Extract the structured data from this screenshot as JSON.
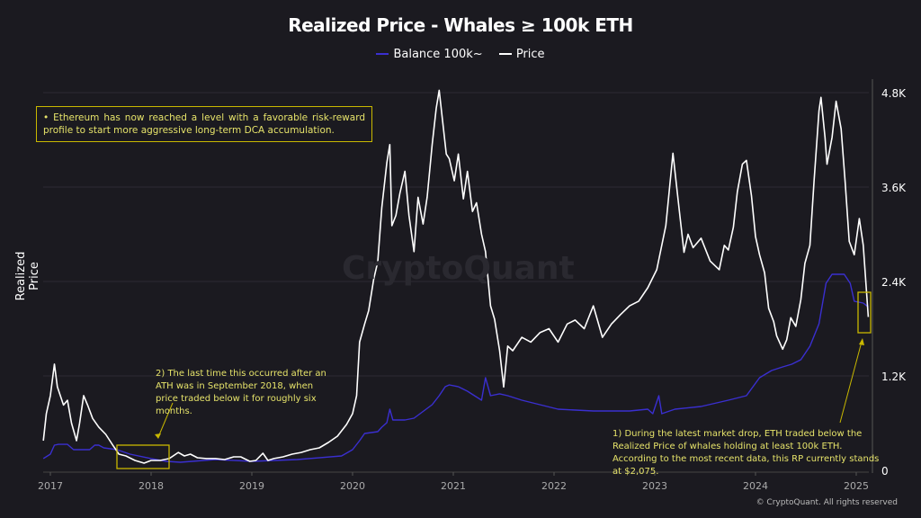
{
  "chart_data": {
    "type": "line",
    "title": "Realized Price - Whales ≥ 100k ETH",
    "ylabel": "Realized Price",
    "y_axis_side": "right",
    "ylim": [
      0,
      5150
    ],
    "xlim": [
      2016.93,
      2025.15
    ],
    "x_ticks": [
      "2017",
      "2018",
      "2019",
      "2020",
      "2021",
      "2022",
      "2023",
      "2024",
      "2025"
    ],
    "y_ticks": [
      {
        "value": 0,
        "label": "0"
      },
      {
        "value": 1200,
        "label": "1.2K"
      },
      {
        "value": 2400,
        "label": "2.4K"
      },
      {
        "value": 3600,
        "label": "3.6K"
      },
      {
        "value": 4800,
        "label": "4.8K"
      }
    ],
    "grid": "horizontal",
    "legend_placement": "top-center",
    "series": [
      {
        "name": "Balance 100k~",
        "color": "#3a2fd0",
        "points": [
          [
            2016.93,
            150
          ],
          [
            2017.0,
            206
          ],
          [
            2017.04,
            320
          ],
          [
            2017.08,
            330
          ],
          [
            2017.17,
            330
          ],
          [
            2017.23,
            263
          ],
          [
            2017.39,
            263
          ],
          [
            2017.44,
            320
          ],
          [
            2017.48,
            320
          ],
          [
            2017.53,
            286
          ],
          [
            2017.66,
            263
          ],
          [
            2017.79,
            206
          ],
          [
            2018.0,
            150
          ],
          [
            2018.15,
            114
          ],
          [
            2018.29,
            103
          ],
          [
            2018.64,
            137
          ],
          [
            2019.0,
            114
          ],
          [
            2019.45,
            137
          ],
          [
            2019.89,
            183
          ],
          [
            2020.0,
            263
          ],
          [
            2020.07,
            377
          ],
          [
            2020.12,
            469
          ],
          [
            2020.25,
            491
          ],
          [
            2020.29,
            549
          ],
          [
            2020.34,
            606
          ],
          [
            2020.37,
            777
          ],
          [
            2020.4,
            640
          ],
          [
            2020.52,
            640
          ],
          [
            2020.61,
            663
          ],
          [
            2020.79,
            834
          ],
          [
            2020.86,
            949
          ],
          [
            2020.92,
            1063
          ],
          [
            2020.96,
            1086
          ],
          [
            2021.05,
            1063
          ],
          [
            2021.14,
            1006
          ],
          [
            2021.28,
            891
          ],
          [
            2021.32,
            1177
          ],
          [
            2021.37,
            949
          ],
          [
            2021.46,
            972
          ],
          [
            2021.54,
            949
          ],
          [
            2021.68,
            891
          ],
          [
            2021.86,
            834
          ],
          [
            2022.04,
            777
          ],
          [
            2022.39,
            754
          ],
          [
            2022.75,
            754
          ],
          [
            2022.93,
            777
          ],
          [
            2022.98,
            720
          ],
          [
            2023.04,
            949
          ],
          [
            2023.07,
            720
          ],
          [
            2023.2,
            777
          ],
          [
            2023.46,
            811
          ],
          [
            2023.73,
            891
          ],
          [
            2023.91,
            949
          ],
          [
            2024.04,
            1177
          ],
          [
            2024.16,
            1269
          ],
          [
            2024.27,
            1314
          ],
          [
            2024.36,
            1349
          ],
          [
            2024.45,
            1406
          ],
          [
            2024.54,
            1577
          ],
          [
            2024.63,
            1863
          ],
          [
            2024.7,
            2377
          ],
          [
            2024.76,
            2491
          ],
          [
            2024.88,
            2491
          ],
          [
            2024.94,
            2377
          ],
          [
            2024.98,
            2149
          ],
          [
            2025.07,
            2126
          ],
          [
            2025.12,
            2075
          ]
        ]
      },
      {
        "name": "Price",
        "color": "#ffffff",
        "points": [
          [
            2016.93,
            377
          ],
          [
            2016.96,
            720
          ],
          [
            2017.0,
            950
          ],
          [
            2017.04,
            1350
          ],
          [
            2017.07,
            1060
          ],
          [
            2017.13,
            830
          ],
          [
            2017.17,
            890
          ],
          [
            2017.21,
            600
          ],
          [
            2017.26,
            377
          ],
          [
            2017.29,
            600
          ],
          [
            2017.33,
            950
          ],
          [
            2017.37,
            830
          ],
          [
            2017.42,
            660
          ],
          [
            2017.48,
            550
          ],
          [
            2017.55,
            457
          ],
          [
            2017.62,
            320
          ],
          [
            2017.68,
            206
          ],
          [
            2017.75,
            183
          ],
          [
            2017.84,
            126
          ],
          [
            2017.93,
            91
          ],
          [
            2018.0,
            126
          ],
          [
            2018.09,
            126
          ],
          [
            2018.18,
            150
          ],
          [
            2018.27,
            228
          ],
          [
            2018.33,
            183
          ],
          [
            2018.39,
            206
          ],
          [
            2018.46,
            160
          ],
          [
            2018.55,
            150
          ],
          [
            2018.64,
            150
          ],
          [
            2018.73,
            137
          ],
          [
            2018.82,
            171
          ],
          [
            2018.89,
            171
          ],
          [
            2018.98,
            114
          ],
          [
            2019.04,
            126
          ],
          [
            2019.11,
            217
          ],
          [
            2019.16,
            126
          ],
          [
            2019.22,
            150
          ],
          [
            2019.31,
            171
          ],
          [
            2019.4,
            206
          ],
          [
            2019.49,
            228
          ],
          [
            2019.58,
            263
          ],
          [
            2019.67,
            286
          ],
          [
            2019.76,
            354
          ],
          [
            2019.85,
            434
          ],
          [
            2019.94,
            583
          ],
          [
            2020.0,
            720
          ],
          [
            2020.04,
            950
          ],
          [
            2020.07,
            1630
          ],
          [
            2020.12,
            1860
          ],
          [
            2020.16,
            2030
          ],
          [
            2020.21,
            2430
          ],
          [
            2020.25,
            2650
          ],
          [
            2020.29,
            3340
          ],
          [
            2020.34,
            3910
          ],
          [
            2020.37,
            4140
          ],
          [
            2020.39,
            3110
          ],
          [
            2020.43,
            3240
          ],
          [
            2020.47,
            3520
          ],
          [
            2020.52,
            3800
          ],
          [
            2020.56,
            3240
          ],
          [
            2020.61,
            2780
          ],
          [
            2020.65,
            3470
          ],
          [
            2020.7,
            3130
          ],
          [
            2020.74,
            3470
          ],
          [
            2020.79,
            4140
          ],
          [
            2020.83,
            4600
          ],
          [
            2020.86,
            4830
          ],
          [
            2020.89,
            4480
          ],
          [
            2020.93,
            4020
          ],
          [
            2020.96,
            3960
          ],
          [
            2021.01,
            3680
          ],
          [
            2021.05,
            4020
          ],
          [
            2021.1,
            3450
          ],
          [
            2021.14,
            3800
          ],
          [
            2021.19,
            3290
          ],
          [
            2021.23,
            3400
          ],
          [
            2021.28,
            3000
          ],
          [
            2021.32,
            2780
          ],
          [
            2021.37,
            2090
          ],
          [
            2021.41,
            1920
          ],
          [
            2021.46,
            1520
          ],
          [
            2021.5,
            1060
          ],
          [
            2021.54,
            1580
          ],
          [
            2021.59,
            1520
          ],
          [
            2021.68,
            1690
          ],
          [
            2021.77,
            1630
          ],
          [
            2021.86,
            1750
          ],
          [
            2021.95,
            1800
          ],
          [
            2022.04,
            1630
          ],
          [
            2022.13,
            1860
          ],
          [
            2022.21,
            1910
          ],
          [
            2022.3,
            1800
          ],
          [
            2022.39,
            2090
          ],
          [
            2022.48,
            1690
          ],
          [
            2022.57,
            1860
          ],
          [
            2022.66,
            1980
          ],
          [
            2022.75,
            2090
          ],
          [
            2022.84,
            2150
          ],
          [
            2022.93,
            2320
          ],
          [
            2023.02,
            2550
          ],
          [
            2023.11,
            3110
          ],
          [
            2023.18,
            4030
          ],
          [
            2023.24,
            3340
          ],
          [
            2023.29,
            2770
          ],
          [
            2023.33,
            3000
          ],
          [
            2023.38,
            2830
          ],
          [
            2023.46,
            2950
          ],
          [
            2023.55,
            2660
          ],
          [
            2023.64,
            2550
          ],
          [
            2023.69,
            2860
          ],
          [
            2023.73,
            2800
          ],
          [
            2023.78,
            3090
          ],
          [
            2023.82,
            3540
          ],
          [
            2023.87,
            3890
          ],
          [
            2023.91,
            3940
          ],
          [
            2023.96,
            3490
          ],
          [
            2024.0,
            2970
          ],
          [
            2024.04,
            2740
          ],
          [
            2024.09,
            2510
          ],
          [
            2024.13,
            2060
          ],
          [
            2024.18,
            1890
          ],
          [
            2024.21,
            1710
          ],
          [
            2024.27,
            1540
          ],
          [
            2024.31,
            1660
          ],
          [
            2024.35,
            1940
          ],
          [
            2024.4,
            1830
          ],
          [
            2024.45,
            2170
          ],
          [
            2024.49,
            2630
          ],
          [
            2024.54,
            2860
          ],
          [
            2024.58,
            3660
          ],
          [
            2024.63,
            4570
          ],
          [
            2024.65,
            4740
          ],
          [
            2024.69,
            4230
          ],
          [
            2024.71,
            3890
          ],
          [
            2024.76,
            4230
          ],
          [
            2024.8,
            4690
          ],
          [
            2024.85,
            4340
          ],
          [
            2024.89,
            3660
          ],
          [
            2024.93,
            2910
          ],
          [
            2024.98,
            2740
          ],
          [
            2025.03,
            3200
          ],
          [
            2025.07,
            2860
          ],
          [
            2025.12,
            1950
          ]
        ]
      }
    ],
    "annotations": [
      "• Ethereum has now reached a level with a favorable risk-reward profile to start more aggressive long-term DCA accumulation.",
      "2) The last time this occurred after an ATH was in September 2018, when price traded below it for roughly six months.",
      "1) During the latest market drop, ETH traded below the Realized Price of whales holding at least 100k ETH. According to the most recent data, this RP currently stands at $2,075."
    ],
    "highlight_color": "#c9b800"
  },
  "watermark": "CryptoQuant",
  "copyright": "© CryptoQuant. All rights reserved"
}
